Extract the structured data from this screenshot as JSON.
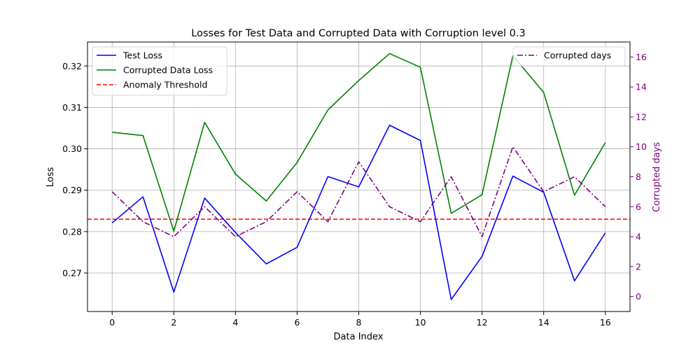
{
  "chart_data": {
    "type": "line",
    "title": "Losses for Test Data and Corrupted Data with Corruption level 0.3",
    "xlabel": "Data Index",
    "ylabel": "Loss",
    "y2label": "Corrupted days",
    "x": [
      0,
      1,
      2,
      3,
      4,
      5,
      6,
      7,
      8,
      9,
      10,
      11,
      12,
      13,
      14,
      15,
      16
    ],
    "xlim": [
      -0.8,
      16.8
    ],
    "ylim": [
      0.2607,
      0.3258
    ],
    "y2lim": [
      -1.0,
      17.0
    ],
    "xticks": [
      0,
      2,
      4,
      6,
      8,
      10,
      12,
      14,
      16
    ],
    "yticks": [
      0.27,
      0.28,
      0.29,
      0.3,
      0.31,
      0.32
    ],
    "ytick_labels": [
      "0.27",
      "0.28",
      "0.29",
      "0.30",
      "0.31",
      "0.32"
    ],
    "y2ticks": [
      0,
      2,
      4,
      6,
      8,
      10,
      12,
      14,
      16
    ],
    "grid": true,
    "series": [
      {
        "name": "Test Loss",
        "axis": "left",
        "color": "#0000ff",
        "style": "solid",
        "values": [
          0.2821,
          0.2884,
          0.2654,
          0.2881,
          0.2798,
          0.2722,
          0.2762,
          0.2933,
          0.2908,
          0.3057,
          0.302,
          0.2636,
          0.274,
          0.2934,
          0.2895,
          0.2681,
          0.2797
        ]
      },
      {
        "name": "Corrupted Data Loss",
        "axis": "left",
        "color": "#008000",
        "style": "solid",
        "values": [
          0.304,
          0.3032,
          0.2801,
          0.3064,
          0.2939,
          0.2874,
          0.2967,
          0.3094,
          0.3165,
          0.323,
          0.3197,
          0.2844,
          0.2889,
          0.3225,
          0.3136,
          0.2888,
          0.3015
        ]
      },
      {
        "name": "Corrupted days",
        "axis": "right",
        "color": "#800080",
        "style": "dashdot",
        "values": [
          7,
          5,
          4,
          6,
          4,
          5,
          7,
          5,
          9,
          6,
          5,
          8,
          4,
          10,
          7,
          8,
          6
        ]
      }
    ],
    "threshold": {
      "name": "Anomaly Threshold",
      "value": 0.283,
      "color": "#ff0000",
      "style": "dashed"
    },
    "legend_left": {
      "placement": "top-left",
      "entries": [
        "Test Loss",
        "Corrupted Data Loss",
        "Anomaly Threshold"
      ]
    },
    "legend_right": {
      "placement": "top-right",
      "entries": [
        "Corrupted days"
      ]
    }
  }
}
